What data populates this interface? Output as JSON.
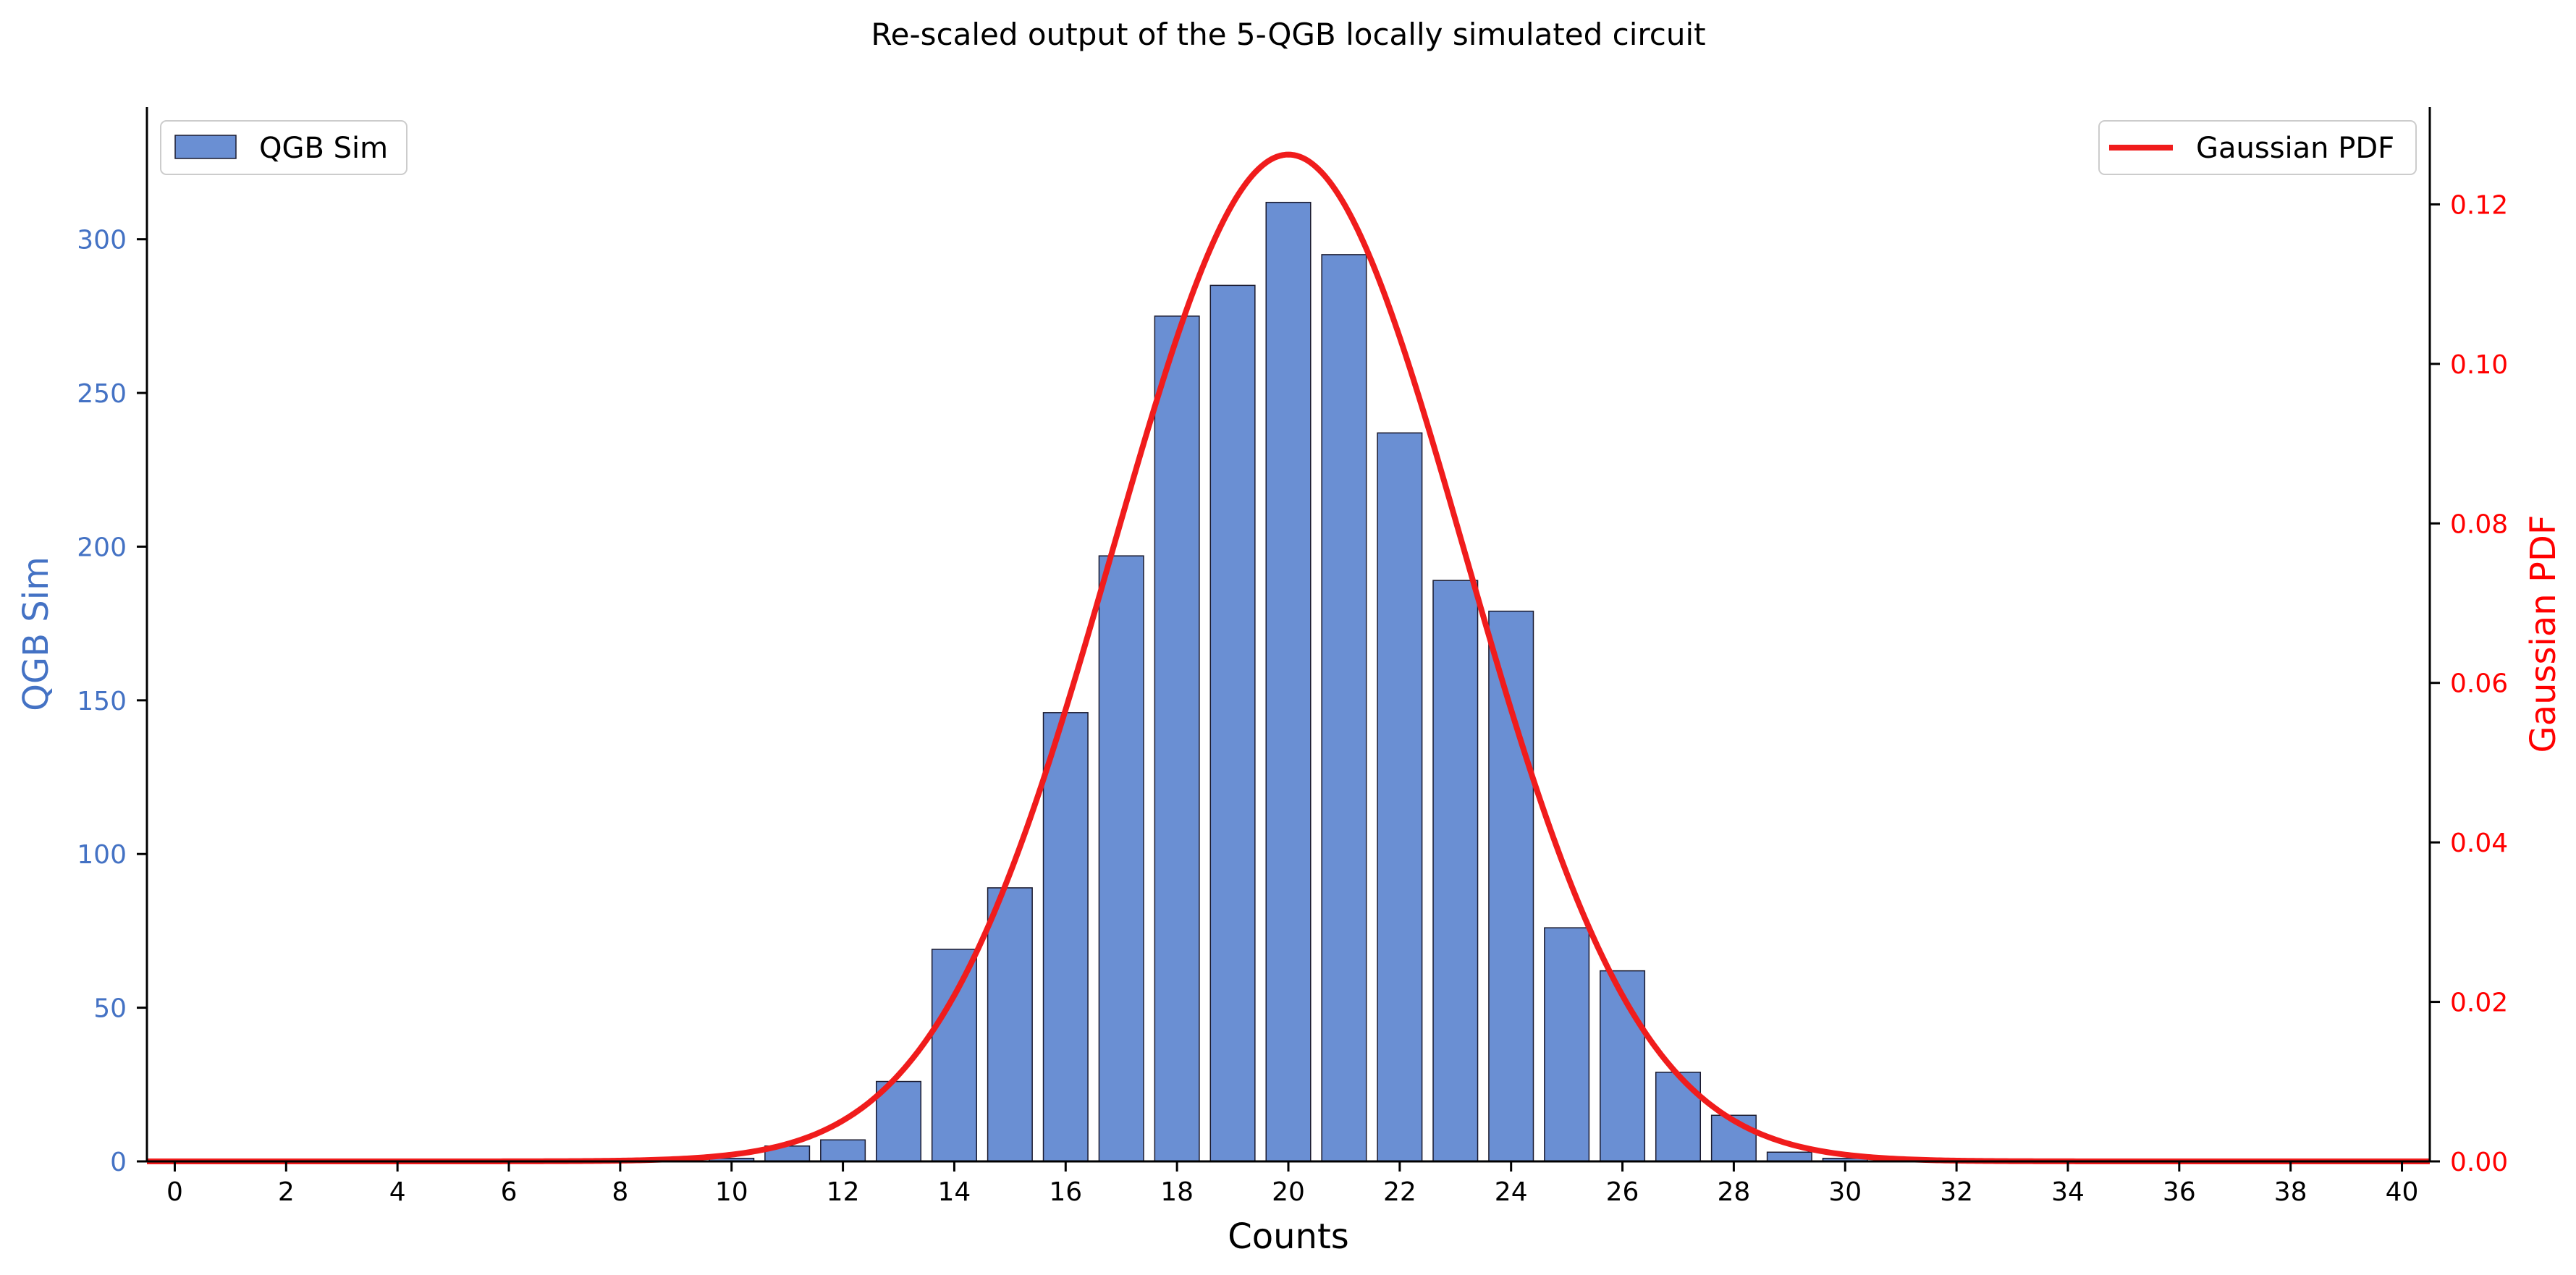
{
  "chart_data": {
    "type": "bar",
    "title": "Re-scaled output of the 5-QGB locally simulated circuit",
    "xlabel": "Counts",
    "ylabel_left": "QGB Sim",
    "ylabel_right": "Gaussian PDF",
    "xlim": [
      -0.5,
      40.5
    ],
    "ylim_left": [
      0,
      343
    ],
    "ylim_right": [
      0,
      0.1322
    ],
    "x_ticks": [
      "0",
      "2",
      "4",
      "6",
      "8",
      "10",
      "12",
      "14",
      "16",
      "18",
      "20",
      "22",
      "24",
      "26",
      "28",
      "30",
      "32",
      "34",
      "36",
      "38",
      "40"
    ],
    "y_ticks_left": [
      "0",
      "50",
      "100",
      "150",
      "200",
      "250",
      "300"
    ],
    "y_ticks_right": [
      "0.00",
      "0.02",
      "0.04",
      "0.06",
      "0.08",
      "0.10",
      "0.12"
    ],
    "grid": false,
    "series": [
      {
        "name": "QGB Sim",
        "type": "bar",
        "axis": "left",
        "color": "#6a8fd3",
        "x": [
          0,
          1,
          2,
          3,
          4,
          5,
          6,
          7,
          8,
          9,
          10,
          11,
          12,
          13,
          14,
          15,
          16,
          17,
          18,
          19,
          20,
          21,
          22,
          23,
          24,
          25,
          26,
          27,
          28,
          29,
          30,
          31,
          32,
          33,
          34,
          35,
          36,
          37,
          38,
          39,
          40
        ],
        "values": [
          0,
          0,
          0,
          0,
          0,
          0,
          0,
          0,
          0,
          0,
          1,
          5,
          7,
          26,
          69,
          89,
          146,
          197,
          275,
          285,
          312,
          295,
          237,
          189,
          179,
          76,
          62,
          29,
          15,
          3,
          1,
          0,
          0,
          0,
          0,
          0,
          0,
          0,
          0,
          0,
          0
        ]
      },
      {
        "name": "Gaussian PDF",
        "type": "line",
        "axis": "right",
        "color": "#f01c1c",
        "mean": 20,
        "std": 3.16
      }
    ],
    "legend": [
      {
        "label": "QGB Sim",
        "placement": "top-left"
      },
      {
        "label": "Gaussian PDF",
        "placement": "top-right"
      }
    ],
    "colors": {
      "left_axis": "#4472c4",
      "right_axis": "#ff0000",
      "bar_fill": "#6a8fd3",
      "bar_edge": "#1a1a2e",
      "line": "#f01c1c"
    }
  }
}
